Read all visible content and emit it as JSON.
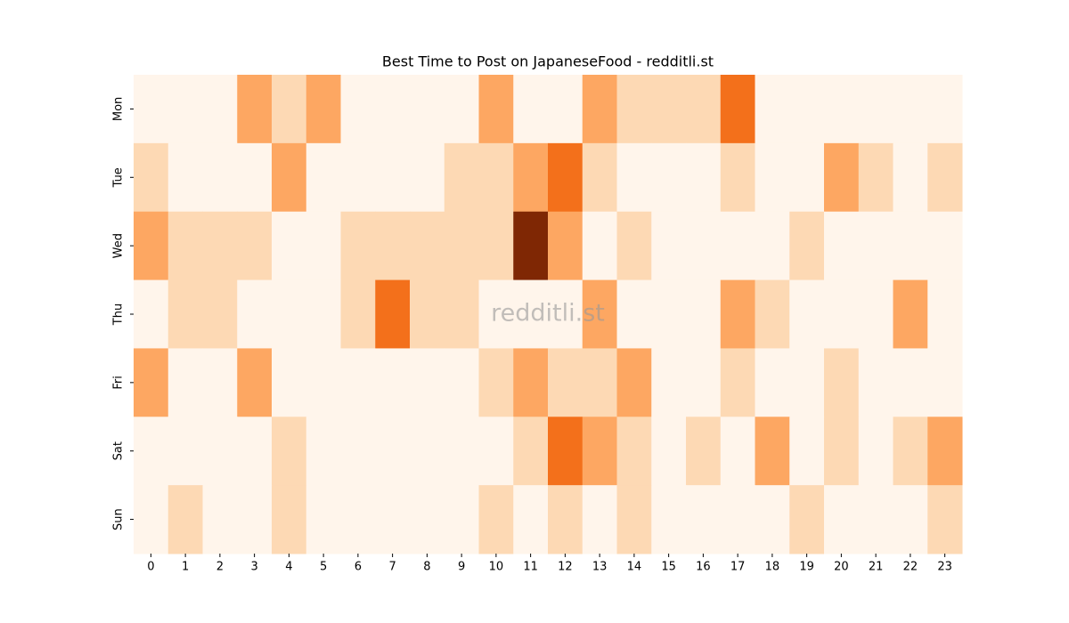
{
  "chart_data": {
    "type": "heatmap",
    "title": "Best Time to Post on JapaneseFood - redditli.st",
    "watermark": "redditli.st",
    "x": [
      0,
      1,
      2,
      3,
      4,
      5,
      6,
      7,
      8,
      9,
      10,
      11,
      12,
      13,
      14,
      15,
      16,
      17,
      18,
      19,
      20,
      21,
      22,
      23
    ],
    "y": [
      "Mon",
      "Tue",
      "Wed",
      "Thu",
      "Fri",
      "Sat",
      "Sun"
    ],
    "values": [
      [
        0,
        0,
        0,
        2,
        1,
        2,
        0,
        0,
        0,
        0,
        2,
        0,
        0,
        2,
        1,
        1,
        1,
        3,
        0,
        0,
        0,
        0,
        0,
        0
      ],
      [
        1,
        0,
        0,
        0,
        2,
        0,
        0,
        0,
        0,
        1,
        1,
        2,
        3,
        1,
        0,
        0,
        0,
        1,
        0,
        0,
        2,
        1,
        0,
        1
      ],
      [
        2,
        1,
        1,
        1,
        0,
        0,
        1,
        1,
        1,
        1,
        1,
        4,
        2,
        0,
        1,
        0,
        0,
        0,
        0,
        1,
        0,
        0,
        0,
        0
      ],
      [
        0,
        1,
        1,
        0,
        0,
        0,
        1,
        3,
        1,
        1,
        0,
        0,
        0,
        2,
        0,
        0,
        0,
        2,
        1,
        0,
        0,
        0,
        2,
        0
      ],
      [
        2,
        0,
        0,
        2,
        0,
        0,
        0,
        0,
        0,
        0,
        1,
        2,
        1,
        1,
        2,
        0,
        0,
        1,
        0,
        0,
        1,
        0,
        0,
        0
      ],
      [
        0,
        0,
        0,
        0,
        1,
        0,
        0,
        0,
        0,
        0,
        0,
        1,
        3,
        2,
        1,
        0,
        1,
        0,
        2,
        0,
        1,
        0,
        1,
        2
      ],
      [
        0,
        1,
        0,
        0,
        1,
        0,
        0,
        0,
        0,
        0,
        1,
        0,
        1,
        0,
        1,
        0,
        0,
        0,
        0,
        1,
        0,
        0,
        0,
        1
      ]
    ],
    "colors": [
      "#fff5eb",
      "#fdd9b4",
      "#fda762",
      "#f3701b",
      "#7f2704"
    ]
  }
}
